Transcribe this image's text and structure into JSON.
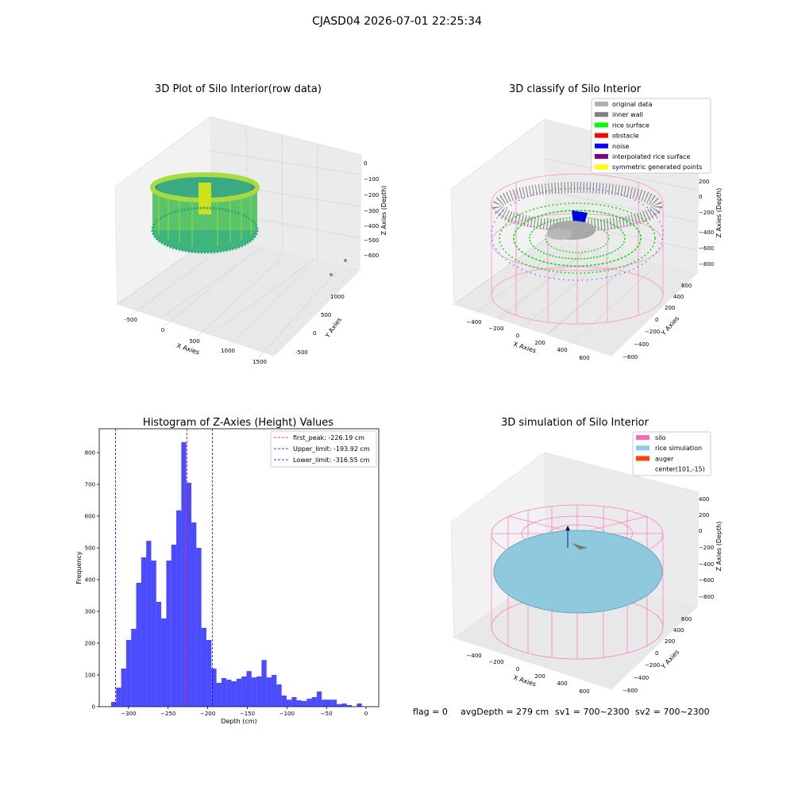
{
  "suptitle": "CJASD04 2026-07-01 22:25:34",
  "panels": {
    "raw": {
      "title": "3D Plot of Silo Interior(row data)",
      "xlabel": "X Axies",
      "ylabel": "Y Axies",
      "zlabel": "Z Axies (Depth)",
      "xticks": [
        "-500",
        "0",
        "500",
        "1000",
        "1500"
      ],
      "yticks": [
        "-500",
        "0",
        "500",
        "1000"
      ],
      "zticks": [
        "0",
        "−100",
        "−200",
        "−300",
        "−400",
        "−500",
        "−600"
      ]
    },
    "classify": {
      "title": "3D classify of Silo Interior",
      "xlabel": "X Axies",
      "ylabel": "Y Axies",
      "zlabel": "Z Axies (Depth)",
      "xticks": [
        "−400",
        "−200",
        "0",
        "200",
        "400",
        "600"
      ],
      "yticks": [
        "−600",
        "−400",
        "−200",
        "0",
        "200",
        "400",
        "600"
      ],
      "zticks": [
        "200",
        "0",
        "−200",
        "−400",
        "−600",
        "−800"
      ],
      "legend": [
        {
          "label": "original data",
          "color": "#b0b0b0"
        },
        {
          "label": "inner wall",
          "color": "#808080"
        },
        {
          "label": "rice surface",
          "color": "#00ff00"
        },
        {
          "label": "obstacle",
          "color": "#ff0000"
        },
        {
          "label": "noise",
          "color": "#0000ff"
        },
        {
          "label": "interpolated rice surface",
          "color": "#800080"
        },
        {
          "label": "symmetric generated points",
          "color": "#ffff00"
        }
      ]
    },
    "simulation": {
      "title": "3D simulation of Silo Interior",
      "xlabel": "X Axies",
      "ylabel": "Y Axies",
      "zlabel": "Z Axies (Depth)",
      "xticks": [
        "−400",
        "−200",
        "0",
        "200",
        "400",
        "600"
      ],
      "yticks": [
        "−600",
        "−400",
        "−200",
        "0",
        "200",
        "400",
        "600"
      ],
      "zticks": [
        "400",
        "200",
        "0",
        "−200",
        "−400",
        "−600",
        "−800"
      ],
      "legend": [
        {
          "label": "silo",
          "color": "#ff69b4"
        },
        {
          "label": "rice simulation",
          "color": "#87ceeb"
        },
        {
          "label": "auger",
          "color": "#ff4500"
        },
        {
          "label": "center(101,-15)",
          "color": ""
        }
      ]
    }
  },
  "footer": {
    "flag": "flag = 0",
    "avg": "avgDepth = 279 cm",
    "sv1": "sv1 = 700~2300",
    "sv2": "sv2 = 700~2300"
  },
  "chart_data": [
    {
      "type": "bar",
      "title": "Histogram of Z-Axies (Height) Values",
      "xlabel": "Depth (cm)",
      "ylabel": "Frequency",
      "xlim": [
        -337,
        16
      ],
      "ylim": [
        0,
        875
      ],
      "xticks": [
        -300,
        -250,
        -200,
        -150,
        -100,
        -50,
        0
      ],
      "yticks": [
        0,
        100,
        200,
        300,
        400,
        500,
        600,
        700,
        800
      ],
      "bin_width": 6.33,
      "bin_starts": [
        -322,
        -315.67,
        -309.33,
        -303,
        -296.67,
        -290.33,
        -284,
        -277.67,
        -271.33,
        -265,
        -258.67,
        -252.33,
        -246,
        -239.67,
        -233.33,
        -227,
        -220.67,
        -214.33,
        -208,
        -201.67,
        -195.33,
        -189,
        -182.67,
        -176.33,
        -170,
        -163.67,
        -157.33,
        -151,
        -144.67,
        -138.33,
        -132,
        -125.67,
        -119.33,
        -113,
        -106.67,
        -100.33,
        -94,
        -87.67,
        -81.33,
        -75,
        -68.67,
        -62.33,
        -56,
        -49.67,
        -43.33,
        -37,
        -30.67,
        -24.33,
        -18,
        -11.67,
        -5.33
      ],
      "values": [
        15,
        60,
        120,
        210,
        245,
        390,
        470,
        522,
        460,
        330,
        278,
        460,
        510,
        618,
        833,
        705,
        580,
        500,
        248,
        210,
        120,
        75,
        90,
        85,
        80,
        88,
        95,
        112,
        92,
        95,
        147,
        92,
        100,
        70,
        35,
        22,
        30,
        20,
        18,
        25,
        30,
        48,
        22,
        22,
        22,
        8,
        10,
        5,
        0,
        10,
        0
      ],
      "bar_color": "#0000ff",
      "reference_lines": [
        {
          "label": "first_peak: -226.19 cm",
          "x": -226.19,
          "color": "#ff0000"
        },
        {
          "label": "Upper_limit: -193.92 cm",
          "x": -193.92,
          "color": "#0000ff"
        },
        {
          "label": "Lower_limit: -316.55 cm",
          "x": -316.55,
          "color": "#0000ff"
        }
      ],
      "legend_position": "top-right"
    }
  ]
}
